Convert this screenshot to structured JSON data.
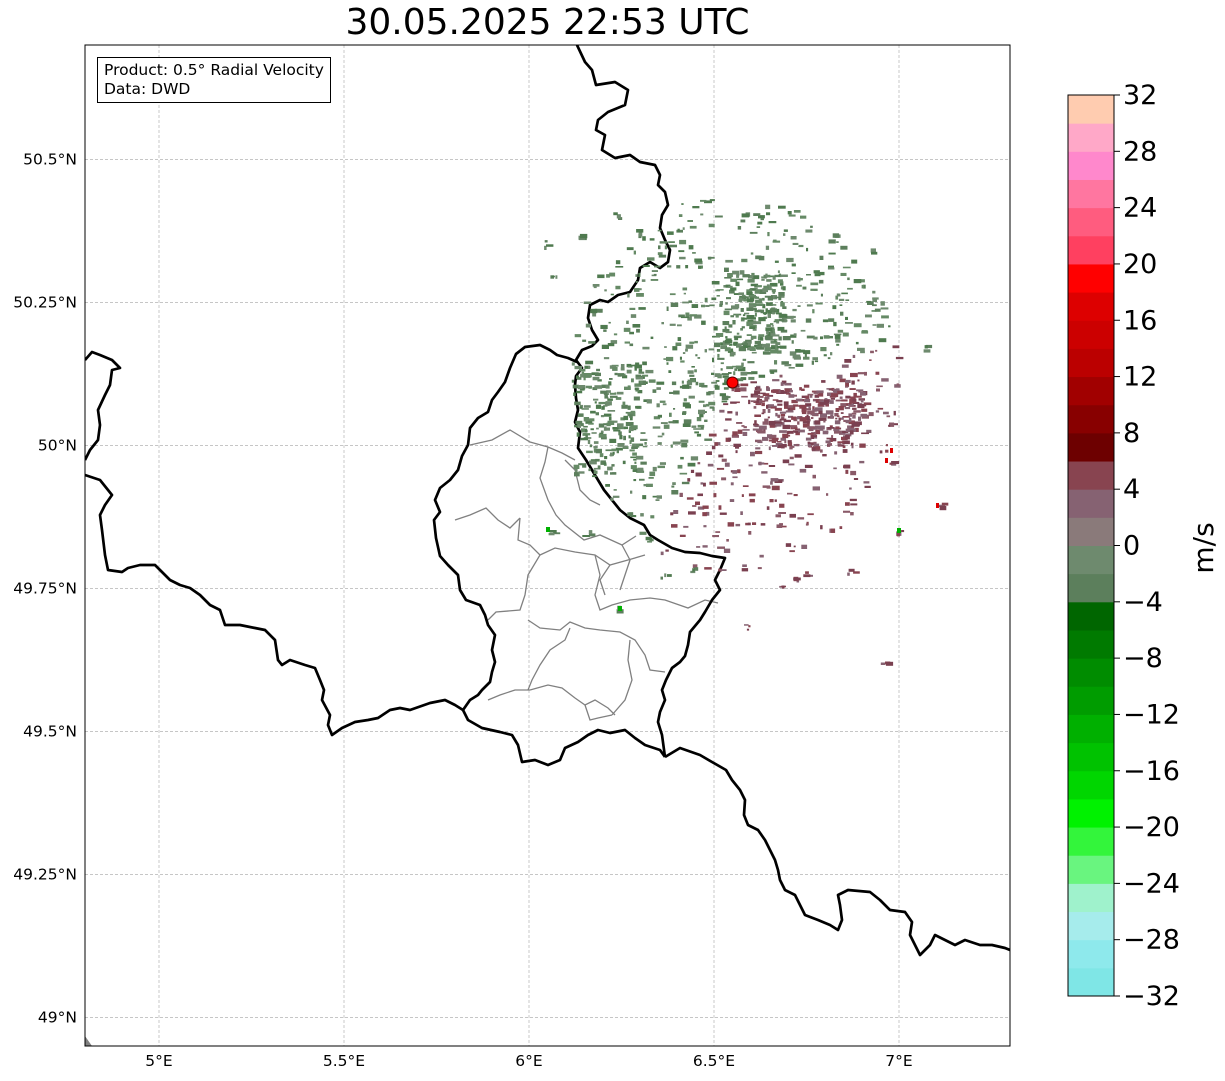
{
  "title": "30.05.2025 22:53 UTC",
  "info_box": {
    "product": "Product: 0.5° Radial Velocity",
    "data": "Data: DWD"
  },
  "map": {
    "lon_range": [
      4.8,
      7.3
    ],
    "lat_range": [
      48.95,
      50.7
    ],
    "lon_ticks": [
      {
        "value": 5.0,
        "label": "5°E"
      },
      {
        "value": 5.5,
        "label": "5.5°E"
      },
      {
        "value": 6.0,
        "label": "6°E"
      },
      {
        "value": 6.5,
        "label": "6.5°E"
      },
      {
        "value": 7.0,
        "label": "7°E"
      }
    ],
    "lat_ticks": [
      {
        "value": 49.0,
        "label": "49°N"
      },
      {
        "value": 49.25,
        "label": "49.25°N"
      },
      {
        "value": 49.5,
        "label": "49.5°N"
      },
      {
        "value": 49.75,
        "label": "49.75°N"
      },
      {
        "value": 50.0,
        "label": "50°N"
      },
      {
        "value": 50.25,
        "label": "50.25°N"
      },
      {
        "value": 50.5,
        "label": "50.5°N"
      }
    ],
    "gridlines": true,
    "radar_site": {
      "lon": 6.55,
      "lat": 50.11,
      "color": "#ff0000"
    }
  },
  "colorbar": {
    "label": "m/s",
    "vmin": -32,
    "vmax": 32,
    "tick_values": [
      -32,
      -28,
      -24,
      -20,
      -16,
      -12,
      -8,
      -4,
      0,
      4,
      8,
      12,
      16,
      20,
      24,
      28,
      32
    ],
    "tick_labels": [
      "−32",
      "−28",
      "−24",
      "−20",
      "−16",
      "−12",
      "−8",
      "−4",
      "0",
      "4",
      "8",
      "12",
      "16",
      "20",
      "24",
      "28",
      "32"
    ],
    "colors": [
      "#7fe6e6",
      "#8ee9ec",
      "#a6ecec",
      "#9ff2cc",
      "#69f57f",
      "#33f53b",
      "#00f200",
      "#00d600",
      "#00c200",
      "#00b000",
      "#009c00",
      "#008c00",
      "#007a00",
      "#006600",
      "#5c7f5c",
      "#6e8a6e",
      "#8a7a7a",
      "#866272",
      "#884450",
      "#6d0000",
      "#880000",
      "#a10000",
      "#bb0000",
      "#cc0000",
      "#dd0000",
      "#ff0000",
      "#ff4060",
      "#ff5c7f",
      "#ff76a0",
      "#ff88cc",
      "#ffa8c8",
      "#ffccb0"
    ]
  }
}
